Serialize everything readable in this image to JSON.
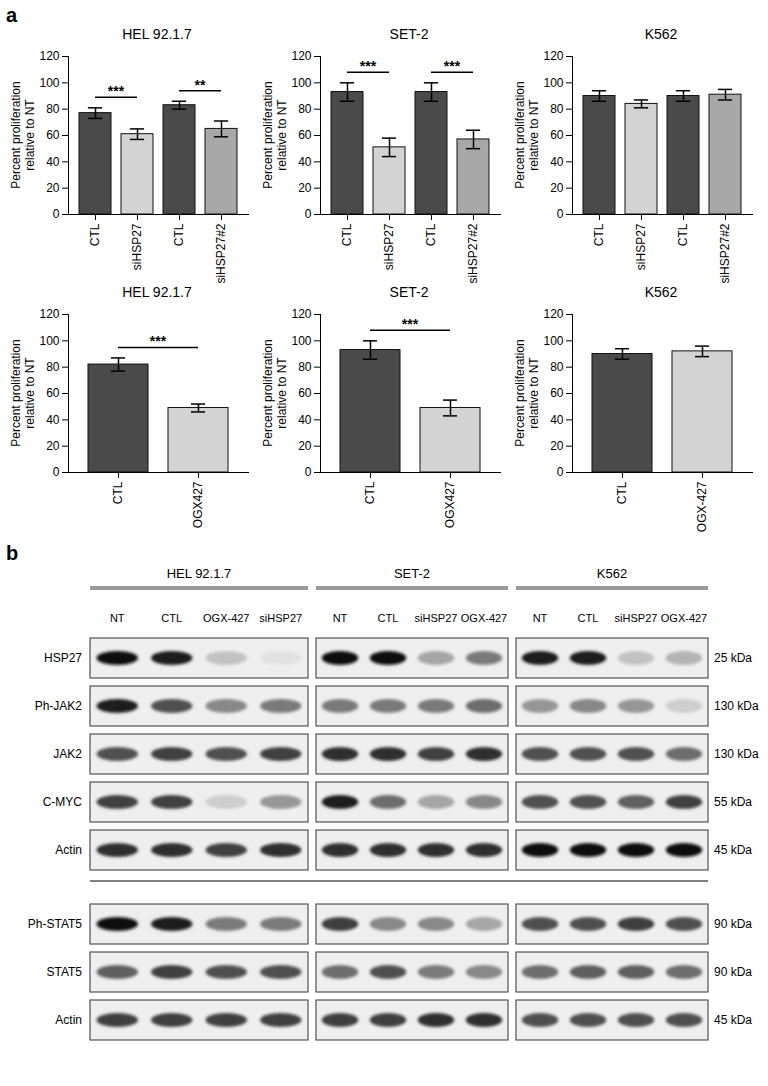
{
  "chart_data": [
    {
      "type": "bar",
      "panel_label": "a",
      "title": "HEL 92.1.7",
      "ylabel": "Percent proliferation\nrelative to NT",
      "categories": [
        "CTL",
        "siHSP27",
        "CTL",
        "siHSP27#2"
      ],
      "values": [
        77,
        61,
        83,
        65
      ],
      "errors": [
        4,
        4,
        3,
        6
      ],
      "colors": [
        "#4a4a4a",
        "#d3d3d3",
        "#4a4a4a",
        "#a8a8a8"
      ],
      "ylim": [
        0,
        120
      ],
      "yticks": [
        0,
        20,
        40,
        60,
        80,
        100,
        120
      ],
      "significance": [
        {
          "between": [
            0,
            1
          ],
          "label": "***"
        },
        {
          "between": [
            2,
            3
          ],
          "label": "**"
        }
      ]
    },
    {
      "type": "bar",
      "title": "SET-2",
      "ylabel": "Percent proliferation\nrelative to NT",
      "categories": [
        "CTL",
        "siHSP27",
        "CTL",
        "siHSP27#2"
      ],
      "values": [
        93,
        51,
        93,
        57
      ],
      "errors": [
        7,
        7,
        7,
        7
      ],
      "colors": [
        "#4a4a4a",
        "#d3d3d3",
        "#4a4a4a",
        "#a8a8a8"
      ],
      "ylim": [
        0,
        120
      ],
      "yticks": [
        0,
        20,
        40,
        60,
        80,
        100,
        120
      ],
      "significance": [
        {
          "between": [
            0,
            1
          ],
          "label": "***"
        },
        {
          "between": [
            2,
            3
          ],
          "label": "***"
        }
      ]
    },
    {
      "type": "bar",
      "title": "K562",
      "ylabel": "Percent proliferation\nrelative to NT",
      "categories": [
        "CTL",
        "siHSP27",
        "CTL",
        "siHSP27#2"
      ],
      "values": [
        90,
        84,
        90,
        91
      ],
      "errors": [
        4,
        3,
        4,
        4
      ],
      "colors": [
        "#4a4a4a",
        "#d3d3d3",
        "#4a4a4a",
        "#a8a8a8"
      ],
      "ylim": [
        0,
        120
      ],
      "yticks": [
        0,
        20,
        40,
        60,
        80,
        100,
        120
      ],
      "significance": []
    },
    {
      "type": "bar",
      "title": "HEL 92.1.7",
      "ylabel": "Percent proliferation\nrelative to NT",
      "categories": [
        "CTL",
        "OGX427"
      ],
      "values": [
        82,
        49
      ],
      "errors": [
        5,
        3
      ],
      "colors": [
        "#4a4a4a",
        "#d3d3d3"
      ],
      "ylim": [
        0,
        120
      ],
      "yticks": [
        0,
        20,
        40,
        60,
        80,
        100,
        120
      ],
      "significance": [
        {
          "between": [
            0,
            1
          ],
          "label": "***"
        }
      ]
    },
    {
      "type": "bar",
      "title": "SET-2",
      "ylabel": "Percent proliferation\nrelative to NT",
      "categories": [
        "CTL",
        "OGX427"
      ],
      "values": [
        93,
        49
      ],
      "errors": [
        7,
        6
      ],
      "colors": [
        "#4a4a4a",
        "#d3d3d3"
      ],
      "ylim": [
        0,
        120
      ],
      "yticks": [
        0,
        20,
        40,
        60,
        80,
        100,
        120
      ],
      "significance": [
        {
          "between": [
            0,
            1
          ],
          "label": "***"
        }
      ]
    },
    {
      "type": "bar",
      "title": "K562",
      "ylabel": "Percent proliferation\nrelative to NT",
      "categories": [
        "CTL",
        "OGX-427"
      ],
      "values": [
        90,
        92
      ],
      "errors": [
        4,
        4
      ],
      "colors": [
        "#4a4a4a",
        "#d3d3d3"
      ],
      "ylim": [
        0,
        120
      ],
      "yticks": [
        0,
        20,
        40,
        60,
        80,
        100,
        120
      ],
      "significance": []
    }
  ],
  "blots": {
    "panel_label": "b",
    "groups": [
      [
        {
          "protein": "HSP27",
          "size": "25 kDa"
        },
        {
          "protein": "Ph-JAK2",
          "size": "130 kDa"
        },
        {
          "protein": "JAK2",
          "size": "130 kDa"
        },
        {
          "protein": "C-MYC",
          "size": "55 kDa"
        },
        {
          "protein": "Actin",
          "size": "45 kDa"
        }
      ],
      [
        {
          "protein": "Ph-STAT5",
          "size": "90 kDa"
        },
        {
          "protein": "STAT5",
          "size": "90 kDa"
        },
        {
          "protein": "Actin",
          "size": "45 kDa"
        }
      ]
    ],
    "cell_lines": [
      {
        "name": "HEL 92.1.7",
        "lanes": [
          "NT",
          "CTL",
          "OGX-427",
          "siHSP27"
        ],
        "band_intensity": [
          [
            [
              0.95,
              0.9,
              0.35,
              0.2
            ],
            [
              0.9,
              0.75,
              0.55,
              0.6
            ],
            [
              0.75,
              0.8,
              0.75,
              0.8
            ],
            [
              0.8,
              0.8,
              0.3,
              0.5
            ],
            [
              0.85,
              0.85,
              0.8,
              0.85
            ]
          ],
          [
            [
              0.95,
              0.9,
              0.6,
              0.6
            ],
            [
              0.7,
              0.8,
              0.75,
              0.75
            ],
            [
              0.8,
              0.8,
              0.8,
              0.8
            ]
          ]
        ]
      },
      {
        "name": "SET-2",
        "lanes": [
          "NT",
          "CTL",
          "siHSP27",
          "OGX-427"
        ],
        "band_intensity": [
          [
            [
              0.95,
              0.95,
              0.45,
              0.6
            ],
            [
              0.6,
              0.6,
              0.6,
              0.65
            ],
            [
              0.85,
              0.85,
              0.8,
              0.85
            ],
            [
              0.9,
              0.65,
              0.45,
              0.55
            ],
            [
              0.85,
              0.85,
              0.85,
              0.85
            ]
          ],
          [
            [
              0.8,
              0.55,
              0.55,
              0.45
            ],
            [
              0.65,
              0.75,
              0.6,
              0.55
            ],
            [
              0.8,
              0.8,
              0.85,
              0.85
            ]
          ]
        ]
      },
      {
        "name": "K562",
        "lanes": [
          "NT",
          "CTL",
          "siHSP27",
          "OGX-427"
        ],
        "band_intensity": [
          [
            [
              0.9,
              0.9,
              0.35,
              0.4
            ],
            [
              0.5,
              0.55,
              0.5,
              0.3
            ],
            [
              0.75,
              0.75,
              0.75,
              0.65
            ],
            [
              0.75,
              0.75,
              0.7,
              0.8
            ],
            [
              0.95,
              0.95,
              0.95,
              0.95
            ]
          ],
          [
            [
              0.75,
              0.75,
              0.8,
              0.75
            ],
            [
              0.65,
              0.7,
              0.7,
              0.65
            ],
            [
              0.75,
              0.75,
              0.75,
              0.75
            ]
          ]
        ]
      }
    ]
  }
}
